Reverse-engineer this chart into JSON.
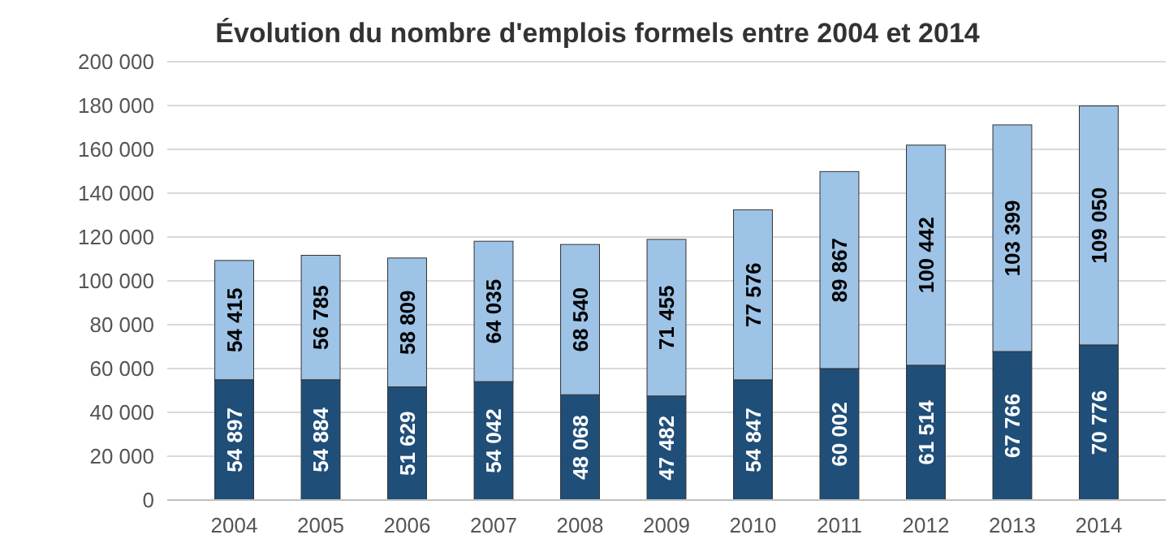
{
  "chart_data": {
    "type": "bar",
    "title": "Évolution du nombre d'emplois formels entre 2004 et 2014",
    "stacked": true,
    "data_labels": true,
    "grid": "y",
    "categories": [
      "2004",
      "2005",
      "2006",
      "2007",
      "2008",
      "2009",
      "2010",
      "2011",
      "2012",
      "2013",
      "2014"
    ],
    "ylim": [
      0,
      200000
    ],
    "yticks": [
      {
        "value": 0,
        "label": "0"
      },
      {
        "value": 20000,
        "label": "20 000"
      },
      {
        "value": 40000,
        "label": "40 000"
      },
      {
        "value": 60000,
        "label": "60 000"
      },
      {
        "value": 80000,
        "label": "80 000"
      },
      {
        "value": 100000,
        "label": "100 000"
      },
      {
        "value": 120000,
        "label": "120 000"
      },
      {
        "value": 140000,
        "label": "140 000"
      },
      {
        "value": 160000,
        "label": "160 000"
      },
      {
        "value": 180000,
        "label": "180 000"
      },
      {
        "value": 200000,
        "label": "200 000"
      }
    ],
    "series": [
      {
        "color": "#1f4e79",
        "values": [
          54897,
          54884,
          51629,
          54042,
          48068,
          47482,
          54847,
          60002,
          61514,
          67766,
          70776
        ],
        "value_labels": [
          "54 897",
          "54 884",
          "51 629",
          "54 042",
          "48 068",
          "47 482",
          "54 847",
          "60 002",
          "61 514",
          "67 766",
          "70 776"
        ]
      },
      {
        "color": "#9dc3e6",
        "values": [
          54415,
          56785,
          58809,
          64035,
          68540,
          71455,
          77576,
          89867,
          100442,
          103399,
          109050
        ],
        "value_labels": [
          "54 415",
          "56 785",
          "58 809",
          "64 035",
          "68 540",
          "71 455",
          "77 576",
          "89 867",
          "100 442",
          "103 399",
          "109 050"
        ]
      }
    ]
  }
}
